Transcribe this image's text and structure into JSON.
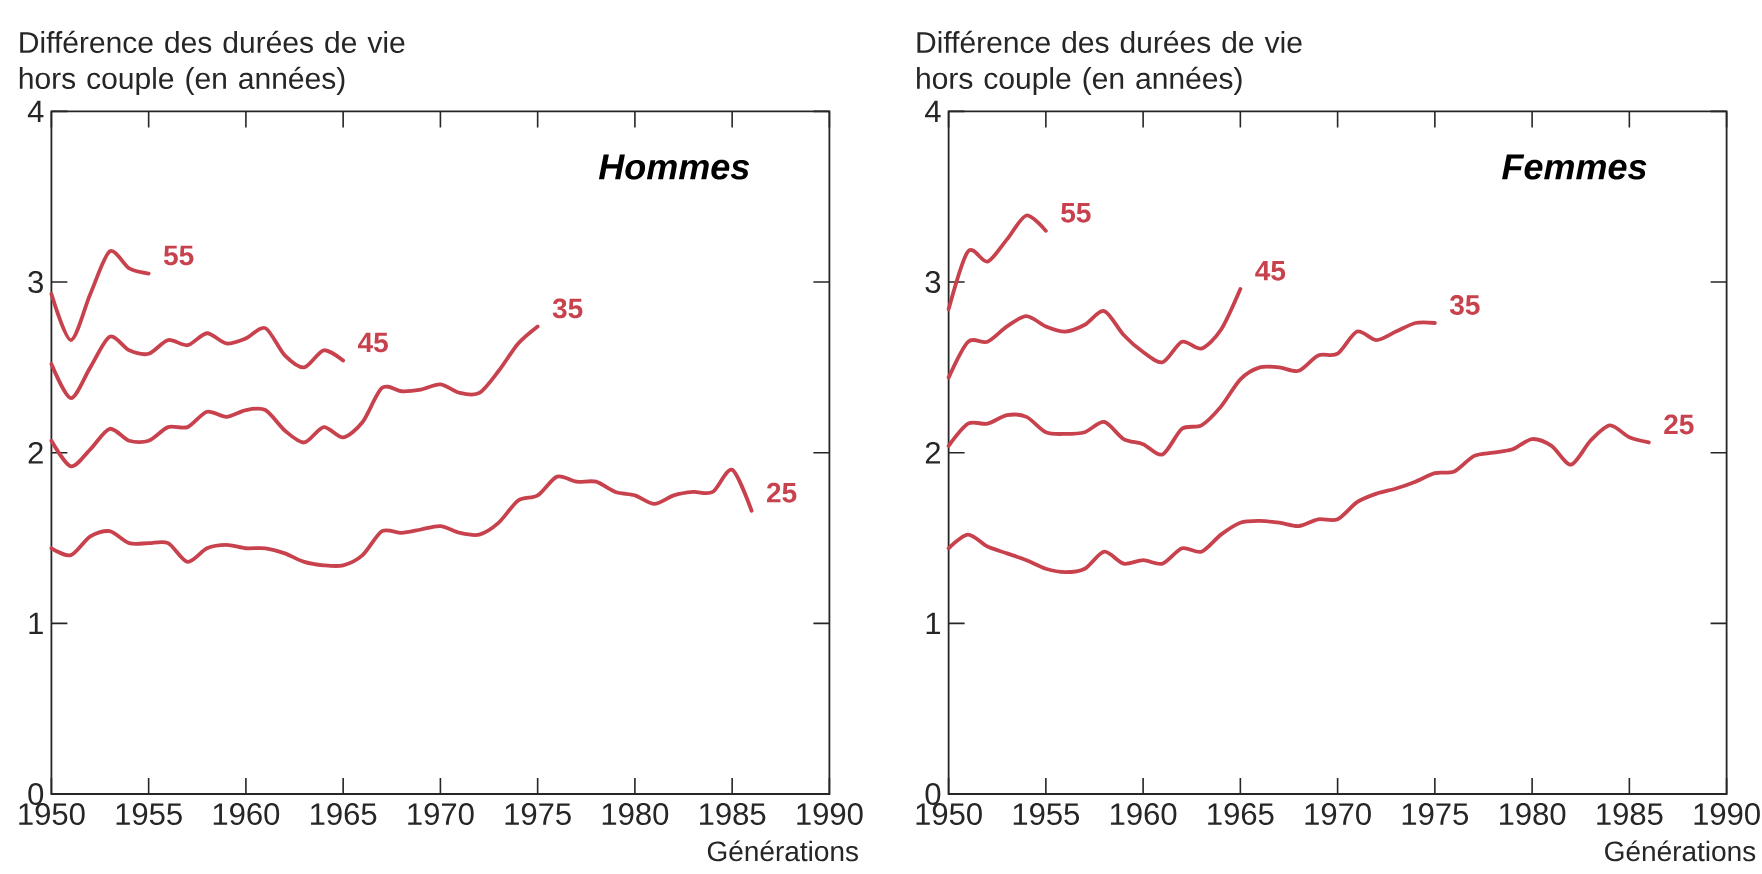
{
  "chart_data": [
    {
      "type": "line",
      "title": "Hommes",
      "xlabel": "Générations",
      "ylabel": "Différence des durées de vie hors couple (en années)",
      "xlim": [
        1950,
        1990
      ],
      "ylim": [
        0,
        4
      ],
      "xticks": [
        1950,
        1955,
        1960,
        1965,
        1970,
        1975,
        1980,
        1985,
        1990
      ],
      "yticks": [
        0,
        1,
        2,
        3,
        4
      ],
      "series": [
        {
          "name": "55",
          "color": "#c8424e",
          "x": [
            1950,
            1951,
            1952,
            1953,
            1954,
            1955
          ],
          "values": [
            2.93,
            2.66,
            2.93,
            3.18,
            3.08,
            3.05
          ]
        },
        {
          "name": "45",
          "color": "#c8424e",
          "x": [
            1950,
            1951,
            1952,
            1953,
            1954,
            1955,
            1956,
            1957,
            1958,
            1959,
            1960,
            1961,
            1962,
            1963,
            1964,
            1965
          ],
          "values": [
            2.52,
            2.32,
            2.5,
            2.68,
            2.6,
            2.58,
            2.66,
            2.63,
            2.7,
            2.64,
            2.67,
            2.73,
            2.57,
            2.5,
            2.6,
            2.54
          ]
        },
        {
          "name": "35",
          "color": "#c8424e",
          "x": [
            1950,
            1951,
            1952,
            1953,
            1954,
            1955,
            1956,
            1957,
            1958,
            1959,
            1960,
            1961,
            1962,
            1963,
            1964,
            1965,
            1966,
            1967,
            1968,
            1969,
            1970,
            1971,
            1972,
            1973,
            1974,
            1975
          ],
          "values": [
            2.07,
            1.92,
            2.02,
            2.14,
            2.07,
            2.07,
            2.15,
            2.15,
            2.24,
            2.21,
            2.25,
            2.25,
            2.13,
            2.06,
            2.15,
            2.09,
            2.18,
            2.38,
            2.36,
            2.37,
            2.4,
            2.35,
            2.35,
            2.48,
            2.64,
            2.74
          ]
        },
        {
          "name": "25",
          "color": "#c8424e",
          "x": [
            1950,
            1951,
            1952,
            1953,
            1954,
            1955,
            1956,
            1957,
            1958,
            1959,
            1960,
            1961,
            1962,
            1963,
            1964,
            1965,
            1966,
            1967,
            1968,
            1969,
            1970,
            1971,
            1972,
            1973,
            1974,
            1975,
            1976,
            1977,
            1978,
            1979,
            1980,
            1981,
            1982,
            1983,
            1984,
            1985,
            1986
          ],
          "values": [
            1.44,
            1.4,
            1.51,
            1.54,
            1.47,
            1.47,
            1.47,
            1.36,
            1.44,
            1.46,
            1.44,
            1.44,
            1.41,
            1.36,
            1.34,
            1.34,
            1.4,
            1.54,
            1.53,
            1.55,
            1.57,
            1.53,
            1.52,
            1.59,
            1.72,
            1.75,
            1.86,
            1.83,
            1.83,
            1.77,
            1.75,
            1.7,
            1.75,
            1.77,
            1.77,
            1.9,
            1.66
          ]
        }
      ]
    },
    {
      "type": "line",
      "title": "Femmes",
      "xlabel": "Générations",
      "ylabel": "Différence des durées de vie hors couple (en années)",
      "xlim": [
        1950,
        1990
      ],
      "ylim": [
        0,
        4
      ],
      "xticks": [
        1950,
        1955,
        1960,
        1965,
        1970,
        1975,
        1980,
        1985,
        1990
      ],
      "yticks": [
        0,
        1,
        2,
        3,
        4
      ],
      "series": [
        {
          "name": "55",
          "color": "#c8424e",
          "x": [
            1950,
            1951,
            1952,
            1953,
            1954,
            1955
          ],
          "values": [
            2.84,
            3.18,
            3.12,
            3.25,
            3.39,
            3.3
          ]
        },
        {
          "name": "45",
          "color": "#c8424e",
          "x": [
            1950,
            1951,
            1952,
            1953,
            1954,
            1955,
            1956,
            1957,
            1958,
            1959,
            1960,
            1961,
            1962,
            1963,
            1964,
            1965
          ],
          "values": [
            2.44,
            2.65,
            2.65,
            2.74,
            2.8,
            2.74,
            2.71,
            2.75,
            2.83,
            2.69,
            2.59,
            2.53,
            2.65,
            2.61,
            2.72,
            2.96
          ]
        },
        {
          "name": "35",
          "color": "#c8424e",
          "x": [
            1950,
            1951,
            1952,
            1953,
            1954,
            1955,
            1956,
            1957,
            1958,
            1959,
            1960,
            1961,
            1962,
            1963,
            1964,
            1965,
            1966,
            1967,
            1968,
            1969,
            1970,
            1971,
            1972,
            1973,
            1974,
            1975
          ],
          "values": [
            2.04,
            2.17,
            2.17,
            2.22,
            2.21,
            2.12,
            2.11,
            2.12,
            2.18,
            2.08,
            2.05,
            1.99,
            2.14,
            2.16,
            2.27,
            2.43,
            2.5,
            2.5,
            2.48,
            2.57,
            2.58,
            2.71,
            2.66,
            2.71,
            2.76,
            2.76
          ]
        },
        {
          "name": "25",
          "color": "#c8424e",
          "x": [
            1950,
            1951,
            1952,
            1953,
            1954,
            1955,
            1956,
            1957,
            1958,
            1959,
            1960,
            1961,
            1962,
            1963,
            1964,
            1965,
            1966,
            1967,
            1968,
            1969,
            1970,
            1971,
            1972,
            1973,
            1974,
            1975,
            1976,
            1977,
            1978,
            1979,
            1980,
            1981,
            1982,
            1983,
            1984,
            1985,
            1986
          ],
          "values": [
            1.44,
            1.52,
            1.45,
            1.41,
            1.37,
            1.32,
            1.3,
            1.32,
            1.42,
            1.35,
            1.37,
            1.35,
            1.44,
            1.42,
            1.52,
            1.59,
            1.6,
            1.59,
            1.57,
            1.61,
            1.61,
            1.71,
            1.76,
            1.79,
            1.83,
            1.88,
            1.89,
            1.98,
            2.0,
            2.02,
            2.08,
            2.04,
            1.93,
            2.07,
            2.16,
            2.09,
            2.06
          ]
        }
      ]
    }
  ]
}
